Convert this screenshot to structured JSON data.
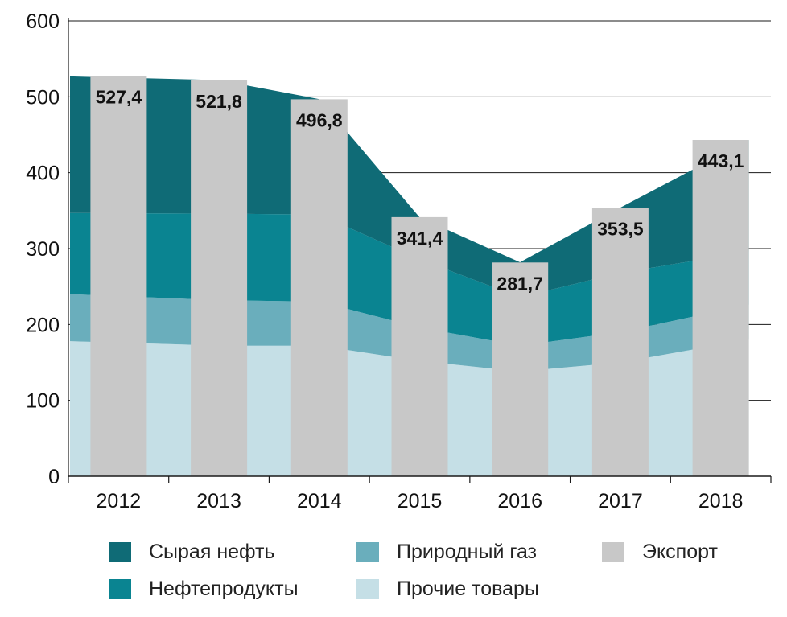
{
  "chart_data": {
    "type": "area",
    "categories": [
      "2012",
      "2013",
      "2014",
      "2015",
      "2016",
      "2017",
      "2018"
    ],
    "ylim": [
      0,
      600
    ],
    "yticks": [
      "0",
      "100",
      "200",
      "300",
      "400",
      "500",
      "600"
    ],
    "grid": true,
    "legend_position": "bottom",
    "series": [
      {
        "name": "Прочие товары",
        "color": "#c5dfe6",
        "values": [
          178,
          172,
          172,
          152,
          138,
          150,
          180
        ]
      },
      {
        "name": "Природный газ",
        "color": "#6aaebc",
        "values": [
          62,
          60,
          58,
          44,
          34,
          40,
          46
        ]
      },
      {
        "name": "Нефтепродукты",
        "color": "#0a8491",
        "values": [
          107,
          114,
          115,
          90,
          64,
          78,
          70
        ]
      },
      {
        "name": "Сырая нефть",
        "color": "#0f6b76",
        "values": [
          180,
          176,
          152,
          55,
          46,
          86,
          147
        ]
      }
    ],
    "bars": {
      "name": "Экспорт",
      "color": "#c8c8c8",
      "values": [
        527.4,
        521.8,
        496.8,
        341.4,
        281.7,
        353.5,
        443.1
      ],
      "labels": [
        "527,4",
        "521,8",
        "496,8",
        "341,4",
        "281,7",
        "353,5",
        "443,1"
      ]
    },
    "legend": [
      {
        "label": "Сырая нефть",
        "color": "#0f6b76"
      },
      {
        "label": "Природный газ",
        "color": "#6aaebc"
      },
      {
        "label": "Экспорт",
        "color": "#c8c8c8"
      },
      {
        "label": "Нефтепродукты",
        "color": "#0a8491"
      },
      {
        "label": "Прочие товары",
        "color": "#c5dfe6"
      }
    ]
  }
}
